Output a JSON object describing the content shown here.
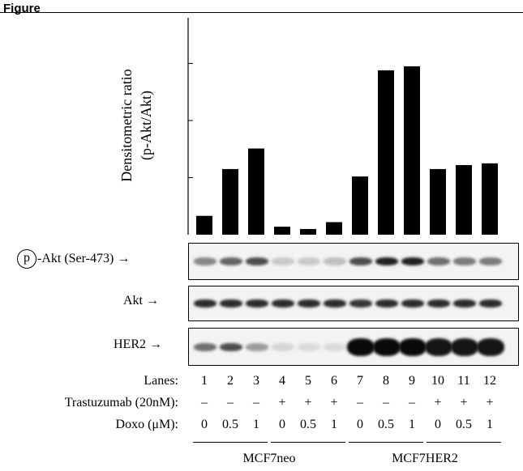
{
  "figure_label": "Figure",
  "chart_data": {
    "type": "bar",
    "ylabel": "Densitometric ratio\n(p-Akt/Akt)",
    "ylabel_line1": "Densitometric ratio",
    "ylabel_line2": "(p-Akt/Akt)",
    "categories": [
      "1",
      "2",
      "3",
      "4",
      "5",
      "6",
      "7",
      "8",
      "9",
      "10",
      "11",
      "12"
    ],
    "values": [
      0.33,
      1.15,
      1.51,
      0.14,
      0.1,
      0.22,
      1.02,
      2.88,
      2.95,
      1.15,
      1.22,
      1.25
    ],
    "ylim": [
      0,
      3.8
    ],
    "bar_color": "#000000",
    "grid": false
  },
  "blots": [
    {
      "name": "p-Akt",
      "prefix": "p",
      "label": "-Akt (Ser-473)"
    },
    {
      "name": "Akt",
      "label": "Akt"
    },
    {
      "name": "HER2",
      "label": "HER2"
    }
  ],
  "table": {
    "rows": [
      {
        "label": "Lanes:",
        "values": [
          "1",
          "2",
          "3",
          "4",
          "5",
          "6",
          "7",
          "8",
          "9",
          "10",
          "11",
          "12"
        ]
      },
      {
        "label": "Trastuzumab (20nM):",
        "values": [
          "–",
          "–",
          "–",
          "+",
          "+",
          "+",
          "–",
          "–",
          "–",
          "+",
          "+",
          "+"
        ]
      },
      {
        "label": "Doxo (μM):",
        "values": [
          "0",
          "0.5",
          "1",
          "0",
          "0.5",
          "1",
          "0",
          "0.5",
          "1",
          "0",
          "0.5",
          "1"
        ]
      }
    ],
    "groups": [
      {
        "label": "MCF7neo"
      },
      {
        "label": "MCF7HER2"
      }
    ]
  },
  "band_intensity": {
    "p-Akt": [
      0.45,
      0.6,
      0.7,
      0.15,
      0.15,
      0.2,
      0.7,
      0.9,
      0.9,
      0.55,
      0.5,
      0.5
    ],
    "Akt": [
      0.85,
      0.85,
      0.85,
      0.85,
      0.85,
      0.85,
      0.8,
      0.85,
      0.85,
      0.85,
      0.85,
      0.85
    ],
    "HER2": [
      0.55,
      0.7,
      0.35,
      0.1,
      0.08,
      0.08,
      1.0,
      1.0,
      1.0,
      0.95,
      0.95,
      0.95
    ]
  }
}
